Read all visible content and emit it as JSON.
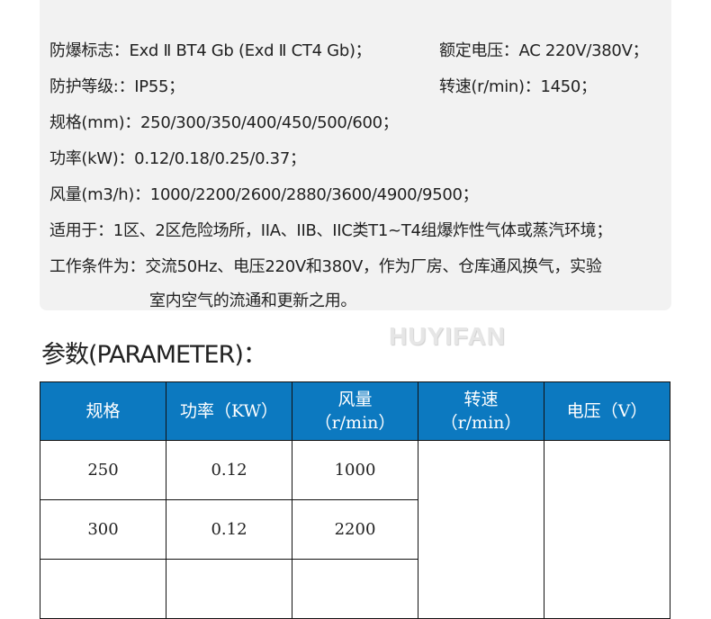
{
  "specs": {
    "lines": [
      "防爆标志：Exd Ⅱ BT4 Gb (Exd Ⅱ CT4 Gb)；",
      "防护等级:：IP55；",
      "规格(mm)：250/300/350/400/450/500/600；",
      "功率(kW)：0.12/0.18/0.25/0.37；",
      "风量(m3/h)：1000/2200/2600/2880/3600/4900/9500；",
      "适用于：1区、2区危险场所，IIA、IIB、IIC类T1~T4组爆炸性气体或蒸汽环境；",
      "工作条件为：交流50Hz、电压220V和380V，作为厂房、仓库通风换气，实验",
      "室内空气的流通和更新之用。"
    ],
    "right": [
      "额定电压：AC 220V/380V；",
      "转速(r/min)：1450；"
    ]
  },
  "section_title": "参数(PARAMETER)：",
  "watermark": "HUYIFAN",
  "table": {
    "header_color": "#0c79c0",
    "headers": [
      {
        "l1": "规格",
        "l2": ""
      },
      {
        "l1": "功率（KW）",
        "l2": ""
      },
      {
        "l1": "风量",
        "l2": "（r/min）"
      },
      {
        "l1": "转速",
        "l2": "（r/min）"
      },
      {
        "l1": "电压（V）",
        "l2": ""
      }
    ],
    "rows": [
      [
        "250",
        "0.12",
        "1000"
      ],
      [
        "300",
        "0.12",
        "2200"
      ]
    ]
  }
}
